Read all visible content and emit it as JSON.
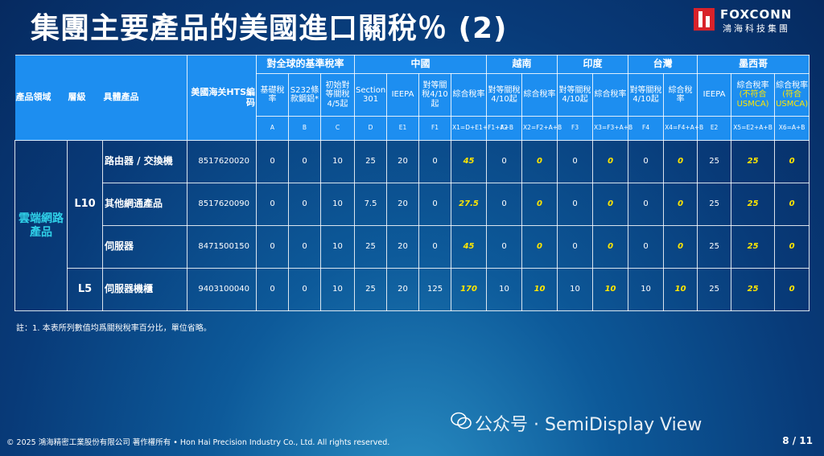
{
  "header": {
    "title": "集團主要產品的美國進口關稅％ (2)",
    "logo": "FOXCONN",
    "logo_sub": "鴻海科技集團"
  },
  "table": {
    "left_headers": [
      "產品領域",
      "層級",
      "具體產品",
      "美國海关HTS編码"
    ],
    "groups": [
      {
        "label": "對全球的基準稅率",
        "columns": [
          {
            "label": "基礎稅率",
            "code": "A"
          },
          {
            "label": "S232條款鋼鋁*",
            "code": "B"
          },
          {
            "label": "初始對等關稅4/5起",
            "code": "C"
          }
        ]
      },
      {
        "label": "中國",
        "columns": [
          {
            "label": "Section 301",
            "code": "D"
          },
          {
            "label": "IEEPA",
            "code": "E1"
          },
          {
            "label": "對等關稅4/10起",
            "code": "F1"
          },
          {
            "label": "綜合稅率",
            "code": "X1=D+E1+F1+A+B"
          }
        ]
      },
      {
        "label": "越南",
        "columns": [
          {
            "label": "對等關稅4/10起",
            "code": "F2"
          },
          {
            "label": "綜合稅率",
            "code": "X2=F2+A+B"
          }
        ]
      },
      {
        "label": "印度",
        "columns": [
          {
            "label": "對等關稅4/10起",
            "code": "F3"
          },
          {
            "label": "綜合稅率",
            "code": "X3=F3+A+B"
          }
        ]
      },
      {
        "label": "台灣",
        "columns": [
          {
            "label": "對等關稅4/10起",
            "code": "F4"
          },
          {
            "label": "綜合稅率",
            "code": "X4=F4+A+B"
          }
        ]
      },
      {
        "label": "墨西哥",
        "columns": [
          {
            "label": "IEEPA",
            "code": "E2"
          },
          {
            "label": "綜合稅率",
            "note": "(不符合USMCA)",
            "code": "X5=E2+A+B"
          },
          {
            "label": "綜合稅率",
            "note": "(符合USMCA)",
            "code": "X6=A+B"
          }
        ]
      }
    ],
    "field": "雲端網路產品",
    "levels": [
      {
        "label": "L10",
        "rows": [
          {
            "product": "路由器 / 交換機",
            "hts": "8517620020",
            "values": [
              0,
              0,
              10,
              25,
              20,
              0,
              45,
              0,
              0,
              0,
              0,
              0,
              0,
              25,
              25,
              0
            ]
          },
          {
            "product": "其他網通產品",
            "hts": "8517620090",
            "values": [
              0,
              0,
              10,
              7.5,
              20,
              0,
              27.5,
              0,
              0,
              0,
              0,
              0,
              0,
              25,
              25,
              0
            ]
          },
          {
            "product": "伺服器",
            "hts": "8471500150",
            "values": [
              0,
              0,
              10,
              25,
              20,
              0,
              45,
              0,
              0,
              0,
              0,
              0,
              0,
              25,
              25,
              0
            ]
          }
        ]
      },
      {
        "label": "L5",
        "rows": [
          {
            "product": "伺服器機櫃",
            "hts": "9403100040",
            "values": [
              0,
              0,
              10,
              25,
              20,
              125,
              170,
              10,
              10,
              10,
              10,
              10,
              10,
              25,
              25,
              0
            ]
          }
        ]
      }
    ]
  },
  "note": "註：1. 本表所列數值均爲關稅稅率百分比，單位省略。",
  "footer": "© 2025 鴻海精密工業股份有限公司 著作權所有 • Hon Hai Precision Industry Co., Ltd. All rights reserved.",
  "watermark": "公众号 · SemiDisplay View",
  "page": "8 / 11"
}
